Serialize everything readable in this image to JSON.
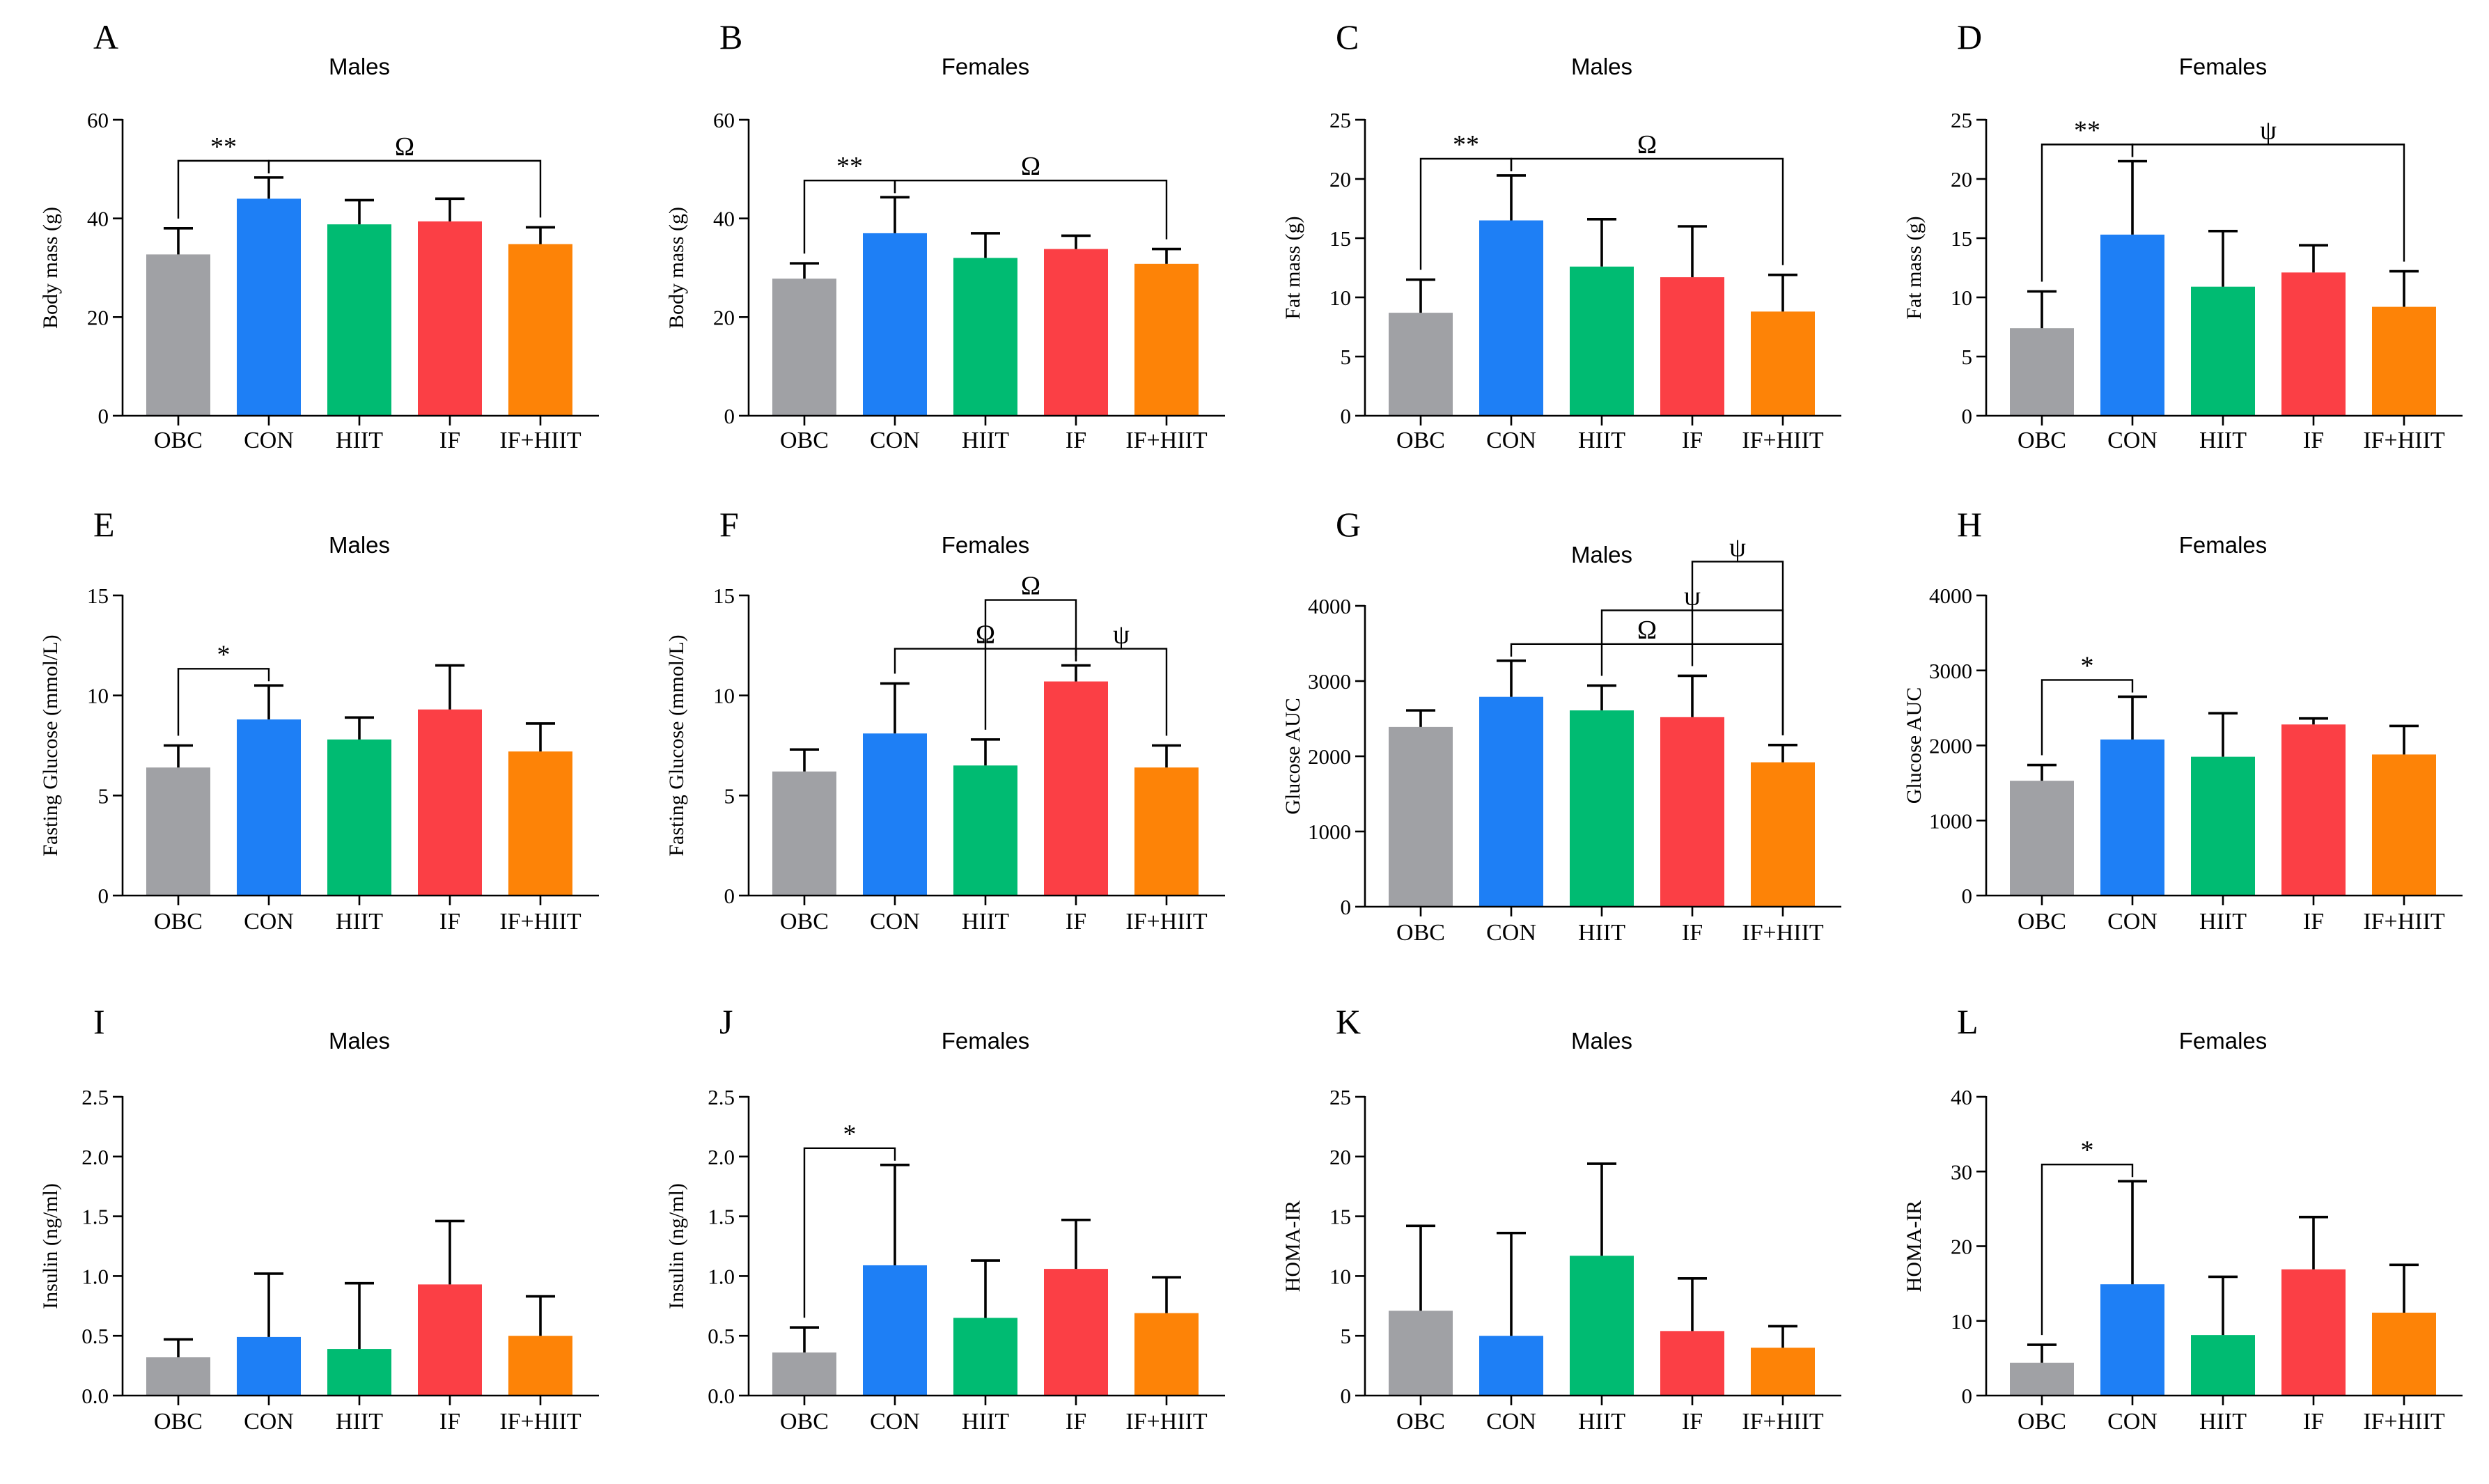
{
  "chart_data": [
    {
      "panel": "A",
      "title": "Males",
      "type": "bar",
      "ylabel": "Body mass (g)",
      "ylim": [
        0,
        60
      ],
      "yticks": [
        0,
        20,
        40,
        60
      ],
      "categories": [
        "OBC",
        "CON",
        "HIIT",
        "IF",
        "IF+HIIT"
      ],
      "values": [
        32.7,
        44.0,
        38.8,
        39.4,
        34.8
      ],
      "errors": [
        5.3,
        4.3,
        4.9,
        4.6,
        3.4
      ],
      "significance": [
        {
          "label": "**",
          "from": 0,
          "to": 1
        },
        {
          "label": "Ω",
          "from": 1,
          "to": 4
        }
      ]
    },
    {
      "panel": "B",
      "title": "Females",
      "type": "bar",
      "ylabel": "Body mass (g)",
      "ylim": [
        0,
        60
      ],
      "yticks": [
        0,
        20,
        40,
        60
      ],
      "categories": [
        "OBC",
        "CON",
        "HIIT",
        "IF",
        "IF+HIIT"
      ],
      "values": [
        27.8,
        37.0,
        32.0,
        33.8,
        30.8
      ],
      "errors": [
        3.1,
        7.3,
        5.0,
        2.7,
        3.0
      ],
      "significance": [
        {
          "label": "**",
          "from": 0,
          "to": 1
        },
        {
          "label": "Ω",
          "from": 1,
          "to": 4
        }
      ]
    },
    {
      "panel": "C",
      "title": "Males",
      "type": "bar",
      "ylabel": "Fat mass (g)",
      "ylim": [
        0,
        25
      ],
      "yticks": [
        0,
        5,
        10,
        15,
        20,
        25
      ],
      "categories": [
        "OBC",
        "CON",
        "HIIT",
        "IF",
        "IF+HIIT"
      ],
      "values": [
        8.7,
        16.5,
        12.6,
        11.7,
        8.8
      ],
      "errors": [
        2.8,
        3.8,
        4.0,
        4.3,
        3.1
      ],
      "significance": [
        {
          "label": "**",
          "from": 0,
          "to": 1
        },
        {
          "label": "Ω",
          "from": 1,
          "to": 4
        }
      ]
    },
    {
      "panel": "D",
      "title": "Females",
      "type": "bar",
      "ylabel": "Fat mass (g)",
      "ylim": [
        0,
        25
      ],
      "yticks": [
        0,
        5,
        10,
        15,
        20,
        25
      ],
      "categories": [
        "OBC",
        "CON",
        "HIIT",
        "IF",
        "IF+HIIT"
      ],
      "values": [
        7.4,
        15.3,
        10.9,
        12.1,
        9.2
      ],
      "errors": [
        3.1,
        6.2,
        4.7,
        2.3,
        3.0
      ],
      "significance": [
        {
          "label": "**",
          "from": 0,
          "to": 1
        },
        {
          "label": "ψ",
          "from": 1,
          "to": 4
        }
      ]
    },
    {
      "panel": "E",
      "title": "Males",
      "type": "bar",
      "ylabel": "Fasting Glucose (mmol/L)",
      "ylim": [
        0,
        15
      ],
      "yticks": [
        0,
        5,
        10,
        15
      ],
      "categories": [
        "OBC",
        "CON",
        "HIIT",
        "IF",
        "IF+HIIT"
      ],
      "values": [
        6.4,
        8.8,
        7.8,
        9.3,
        7.2
      ],
      "errors": [
        1.1,
        1.7,
        1.1,
        2.2,
        1.4
      ],
      "significance": [
        {
          "label": "*",
          "from": 0,
          "to": 1
        }
      ]
    },
    {
      "panel": "F",
      "title": "Females",
      "type": "bar",
      "ylabel": "Fasting Glucose (mmol/L)",
      "ylim": [
        0,
        15
      ],
      "yticks": [
        0,
        5,
        10,
        15
      ],
      "categories": [
        "OBC",
        "CON",
        "HIIT",
        "IF",
        "IF+HIIT"
      ],
      "values": [
        6.2,
        8.1,
        6.5,
        10.7,
        6.4
      ],
      "errors": [
        1.1,
        2.5,
        1.3,
        0.8,
        1.1
      ],
      "significance": [
        {
          "label": "Ω",
          "from": 1,
          "to": 3
        },
        {
          "label": "Ω",
          "from": 2,
          "to": 3
        },
        {
          "label": "ψ",
          "from": 3,
          "to": 4
        }
      ]
    },
    {
      "panel": "G",
      "title": "Males",
      "type": "bar",
      "ylabel": "Glucose AUC",
      "ylim": [
        0,
        4000
      ],
      "yticks": [
        0,
        1000,
        2000,
        3000,
        4000
      ],
      "categories": [
        "OBC",
        "CON",
        "HIIT",
        "IF",
        "IF+HIIT"
      ],
      "values": [
        2390,
        2790,
        2610,
        2520,
        1920
      ],
      "errors": [
        220,
        480,
        330,
        550,
        230
      ],
      "significance": [
        {
          "label": "Ω",
          "from": 1,
          "to": 4
        },
        {
          "label": "ψ",
          "from": 2,
          "to": 4
        },
        {
          "label": "ψ",
          "from": 3,
          "to": 4
        }
      ]
    },
    {
      "panel": "H",
      "title": "Females",
      "type": "bar",
      "ylabel": "Glucose AUC",
      "ylim": [
        0,
        4000
      ],
      "yticks": [
        0,
        1000,
        2000,
        3000,
        4000
      ],
      "categories": [
        "OBC",
        "CON",
        "HIIT",
        "IF",
        "IF+HIIT"
      ],
      "values": [
        1530,
        2080,
        1850,
        2280,
        1880
      ],
      "errors": [
        210,
        570,
        580,
        80,
        380
      ],
      "significance": [
        {
          "label": "*",
          "from": 0,
          "to": 1
        }
      ]
    },
    {
      "panel": "I",
      "title": "Males",
      "type": "bar",
      "ylabel": "Insulin (ng/ml)",
      "ylim": [
        0,
        2.5
      ],
      "yticks": [
        "0.0",
        "0.5",
        "1.0",
        "1.5",
        "2.0",
        "2.5"
      ],
      "categories": [
        "OBC",
        "CON",
        "HIIT",
        "IF",
        "IF+HIIT"
      ],
      "values": [
        0.32,
        0.49,
        0.39,
        0.93,
        0.5
      ],
      "errors": [
        0.15,
        0.53,
        0.55,
        0.53,
        0.33
      ],
      "significance": []
    },
    {
      "panel": "J",
      "title": "Females",
      "type": "bar",
      "ylabel": "Insulin (ng/ml)",
      "ylim": [
        0,
        2.5
      ],
      "yticks": [
        "0.0",
        "0.5",
        "1.0",
        "1.5",
        "2.0",
        "2.5"
      ],
      "categories": [
        "OBC",
        "CON",
        "HIIT",
        "IF",
        "IF+HIIT"
      ],
      "values": [
        0.36,
        1.09,
        0.65,
        1.06,
        0.69
      ],
      "errors": [
        0.21,
        0.84,
        0.48,
        0.41,
        0.3
      ],
      "significance": [
        {
          "label": "*",
          "from": 0,
          "to": 1
        }
      ]
    },
    {
      "panel": "K",
      "title": "Males",
      "type": "bar",
      "ylabel": "HOMA-IR",
      "ylim": [
        0,
        25
      ],
      "yticks": [
        0,
        5,
        10,
        15,
        20,
        25
      ],
      "categories": [
        "OBC",
        "CON",
        "HIIT",
        "IF",
        "IF+HIIT"
      ],
      "values": [
        7.1,
        5.0,
        11.7,
        5.4,
        4.0
      ],
      "errors": [
        7.1,
        8.6,
        7.7,
        4.4,
        1.8
      ],
      "significance": []
    },
    {
      "panel": "L",
      "title": "Females",
      "type": "bar",
      "ylabel": "HOMA-IR",
      "ylim": [
        0,
        40
      ],
      "yticks": [
        0,
        10,
        20,
        30,
        40
      ],
      "categories": [
        "OBC",
        "CON",
        "HIIT",
        "IF",
        "IF+HIIT"
      ],
      "values": [
        4.4,
        14.9,
        8.1,
        16.9,
        11.1
      ],
      "errors": [
        2.4,
        13.8,
        7.8,
        7.0,
        6.4
      ],
      "significance": [
        {
          "label": "*",
          "from": 0,
          "to": 1
        }
      ]
    }
  ],
  "colors": {
    "bars": [
      "#a0a1a5",
      "#1e7ff5",
      "#00bb72",
      "#fb3f45",
      "#fd8307"
    ],
    "text": "#000000"
  }
}
